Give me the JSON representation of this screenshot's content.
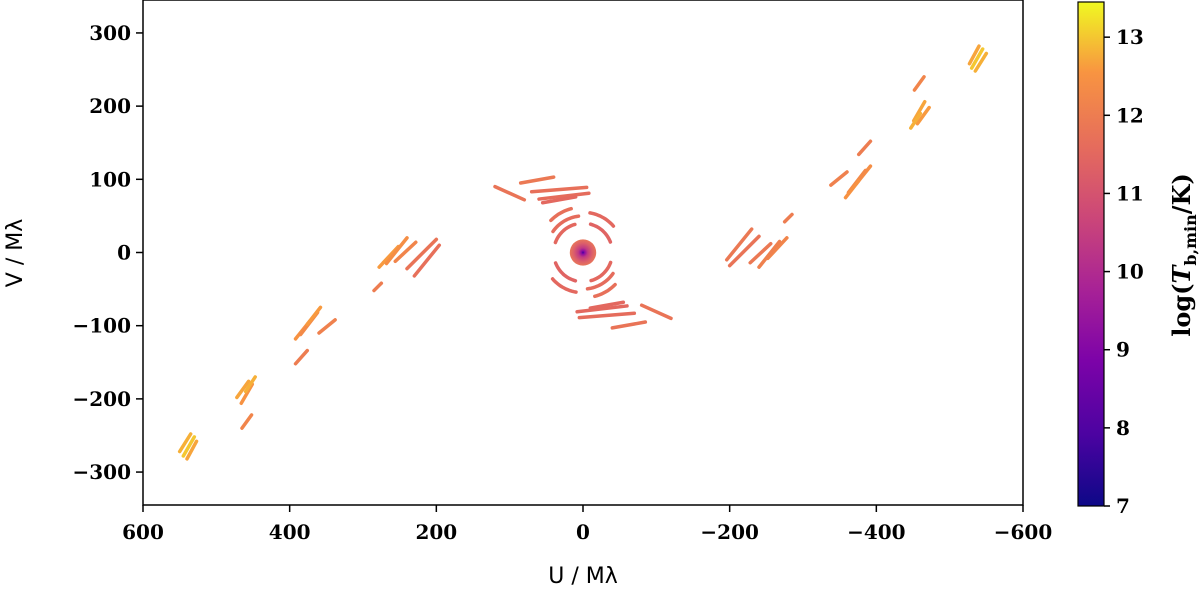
{
  "chart_data": {
    "type": "scatter",
    "title": "",
    "xlabel": "U / Mλ",
    "ylabel": "V / Mλ",
    "xlim": [
      600,
      -600
    ],
    "ylim": [
      -345,
      345
    ],
    "x_ticks": [
      600,
      400,
      200,
      0,
      -200,
      -400,
      -600
    ],
    "x_tick_labels": [
      "600",
      "400",
      "200",
      "0",
      "−200",
      "−400",
      "−600"
    ],
    "y_ticks": [
      300,
      200,
      100,
      0,
      -100,
      -200,
      -300
    ],
    "y_tick_labels": [
      "300",
      "200",
      "100",
      "0",
      "−100",
      "−200",
      "−300"
    ],
    "colorbar": {
      "label": "log(T_b,min/K)",
      "label_main": "log(",
      "label_T": "T",
      "label_sub": "b,min",
      "label_tail": "/K)",
      "range": [
        7,
        13.45
      ],
      "ticks": [
        7,
        8,
        9,
        10,
        11,
        12,
        13
      ],
      "tick_labels": [
        "7",
        "8",
        "9",
        "10",
        "11",
        "12",
        "13"
      ],
      "colormap": "plasma"
    },
    "core_disk": {
      "center": [
        0,
        0
      ],
      "radius": 18,
      "value_center": 7.6,
      "value_edge": 11.2
    },
    "tracks": [
      {
        "u": [
          545,
          530
        ],
        "v": [
          -278,
          -252
        ],
        "value": 13.0
      },
      {
        "u": [
          550,
          535
        ],
        "v": [
          -272,
          -248
        ],
        "value": 12.8
      },
      {
        "u": [
          540,
          527
        ],
        "v": [
          -282,
          -258
        ],
        "value": 12.7
      },
      {
        "u": [
          472,
          456
        ],
        "v": [
          -198,
          -176
        ],
        "value": 12.7
      },
      {
        "u": [
          466,
          451
        ],
        "v": [
          -206,
          -180
        ],
        "value": 12.5
      },
      {
        "u": [
          460,
          447
        ],
        "v": [
          -190,
          -170
        ],
        "value": 12.8
      },
      {
        "u": [
          465,
          452
        ],
        "v": [
          -240,
          -222
        ],
        "value": 12.2
      },
      {
        "u": [
          392,
          372
        ],
        "v": [
          -118,
          -93
        ],
        "value": 12.5
      },
      {
        "u": [
          385,
          362
        ],
        "v": [
          -112,
          -82
        ],
        "value": 12.3
      },
      {
        "u": [
          376,
          358
        ],
        "v": [
          -98,
          -75
        ],
        "value": 12.6
      },
      {
        "u": [
          360,
          338
        ],
        "v": [
          -110,
          -92
        ],
        "value": 12.1
      },
      {
        "u": [
          392,
          376
        ],
        "v": [
          -152,
          -134
        ],
        "value": 12.0
      },
      {
        "u": [
          278,
          252
        ],
        "v": [
          -20,
          8
        ],
        "value": 12.6
      },
      {
        "u": [
          268,
          240
        ],
        "v": [
          -15,
          20
        ],
        "value": 12.4
      },
      {
        "u": [
          256,
          228
        ],
        "v": [
          -12,
          14
        ],
        "value": 12.2
      },
      {
        "u": [
          240,
          200
        ],
        "v": [
          -22,
          18
        ],
        "value": 11.8
      },
      {
        "u": [
          230,
          196
        ],
        "v": [
          -32,
          10
        ],
        "value": 11.7
      },
      {
        "u": [
          285,
          275
        ],
        "v": [
          -52,
          -42
        ],
        "value": 12.0
      },
      {
        "u": [
          120,
          80
        ],
        "v": [
          90,
          72
        ],
        "value": 11.8
      },
      {
        "u": [
          85,
          40
        ],
        "v": [
          95,
          103
        ],
        "value": 11.9
      },
      {
        "u": [
          70,
          -5
        ],
        "v": [
          83,
          89
        ],
        "value": 11.7
      },
      {
        "u": [
          60,
          -8
        ],
        "v": [
          73,
          81
        ],
        "value": 11.6
      },
      {
        "u": [
          55,
          10
        ],
        "v": [
          68,
          76
        ],
        "value": 11.5
      },
      {
        "u": [
          -120,
          -80
        ],
        "v": [
          -90,
          -72
        ],
        "value": 11.8
      },
      {
        "u": [
          -85,
          -40
        ],
        "v": [
          -95,
          -103
        ],
        "value": 11.8
      },
      {
        "u": [
          -70,
          5
        ],
        "v": [
          -83,
          -89
        ],
        "value": 11.6
      },
      {
        "u": [
          -60,
          8
        ],
        "v": [
          -73,
          -81
        ],
        "value": 11.5
      },
      {
        "u": [
          -55,
          -10
        ],
        "v": [
          -68,
          -76
        ],
        "value": 11.5
      },
      {
        "u": [
          -278,
          -252
        ],
        "v": [
          20,
          -8
        ],
        "value": 12.2
      },
      {
        "u": [
          -268,
          -240
        ],
        "v": [
          15,
          -20
        ],
        "value": 12.1
      },
      {
        "u": [
          -256,
          -228
        ],
        "v": [
          12,
          -14
        ],
        "value": 11.9
      },
      {
        "u": [
          -240,
          -200
        ],
        "v": [
          22,
          -18
        ],
        "value": 11.8
      },
      {
        "u": [
          -230,
          -196
        ],
        "v": [
          32,
          -10
        ],
        "value": 11.9
      },
      {
        "u": [
          -285,
          -275
        ],
        "v": [
          52,
          42
        ],
        "value": 12.0
      },
      {
        "u": [
          -392,
          -372
        ],
        "v": [
          118,
          93
        ],
        "value": 12.4
      },
      {
        "u": [
          -385,
          -362
        ],
        "v": [
          112,
          82
        ],
        "value": 12.3
      },
      {
        "u": [
          -376,
          -358
        ],
        "v": [
          98,
          75
        ],
        "value": 12.5
      },
      {
        "u": [
          -360,
          -338
        ],
        "v": [
          110,
          92
        ],
        "value": 12.1
      },
      {
        "u": [
          -392,
          -376
        ],
        "v": [
          152,
          134
        ],
        "value": 12.0
      },
      {
        "u": [
          -472,
          -456
        ],
        "v": [
          198,
          176
        ],
        "value": 12.6
      },
      {
        "u": [
          -466,
          -451
        ],
        "v": [
          206,
          180
        ],
        "value": 12.7
      },
      {
        "u": [
          -460,
          -447
        ],
        "v": [
          190,
          170
        ],
        "value": 12.8
      },
      {
        "u": [
          -465,
          -452
        ],
        "v": [
          240,
          222
        ],
        "value": 12.2
      },
      {
        "u": [
          -545,
          -530
        ],
        "v": [
          278,
          252
        ],
        "value": 13.0
      },
      {
        "u": [
          -550,
          -535
        ],
        "v": [
          272,
          248
        ],
        "value": 12.8
      },
      {
        "u": [
          -540,
          -527
        ],
        "v": [
          282,
          258
        ],
        "value": 12.7
      }
    ],
    "arcs": [
      {
        "r": 40,
        "start": 20,
        "end": 75,
        "value": 11.5
      },
      {
        "r": 40,
        "start": 105,
        "end": 160,
        "value": 11.4
      },
      {
        "r": 40,
        "start": 200,
        "end": 255,
        "value": 11.5
      },
      {
        "r": 40,
        "start": 285,
        "end": 340,
        "value": 11.4
      },
      {
        "r": 50,
        "start": 35,
        "end": 85,
        "value": 11.6
      },
      {
        "r": 50,
        "start": 215,
        "end": 265,
        "value": 11.6
      },
      {
        "r": 55,
        "start": 100,
        "end": 140,
        "value": 11.5
      },
      {
        "r": 55,
        "start": 280,
        "end": 320,
        "value": 11.5
      },
      {
        "r": 62,
        "start": 45,
        "end": 75,
        "value": 11.7
      },
      {
        "r": 62,
        "start": 225,
        "end": 255,
        "value": 11.7
      }
    ]
  }
}
